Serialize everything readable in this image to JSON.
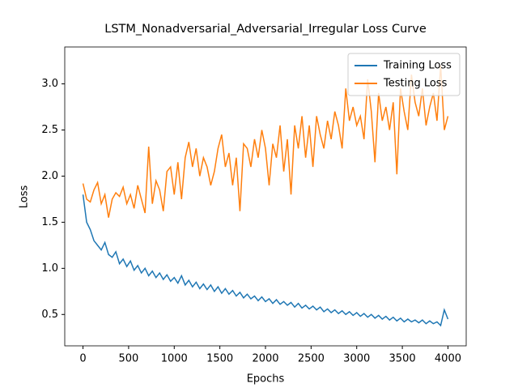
{
  "chart_data": {
    "type": "line",
    "title": "LSTM_Nonadversarial_Adversarial_Irregular Loss Curve",
    "x_label": "Epochs",
    "y_label": "Loss",
    "x": [
      0,
      40,
      80,
      120,
      160,
      200,
      240,
      280,
      320,
      360,
      400,
      440,
      480,
      520,
      560,
      600,
      640,
      680,
      720,
      760,
      800,
      840,
      880,
      920,
      960,
      1000,
      1040,
      1080,
      1120,
      1160,
      1200,
      1240,
      1280,
      1320,
      1360,
      1400,
      1440,
      1480,
      1520,
      1560,
      1600,
      1640,
      1680,
      1720,
      1760,
      1800,
      1840,
      1880,
      1920,
      1960,
      2000,
      2040,
      2080,
      2120,
      2160,
      2200,
      2240,
      2280,
      2320,
      2360,
      2400,
      2440,
      2480,
      2520,
      2560,
      2600,
      2640,
      2680,
      2720,
      2760,
      2800,
      2840,
      2880,
      2920,
      2960,
      3000,
      3040,
      3080,
      3120,
      3160,
      3200,
      3240,
      3280,
      3320,
      3360,
      3400,
      3440,
      3480,
      3520,
      3560,
      3600,
      3640,
      3680,
      3720,
      3760,
      3800,
      3840,
      3880,
      3920,
      3960,
      4000
    ],
    "series": [
      {
        "name": "Training Loss",
        "color": "#1f77b4",
        "values": [
          1.8,
          1.5,
          1.42,
          1.3,
          1.25,
          1.2,
          1.28,
          1.15,
          1.12,
          1.18,
          1.05,
          1.1,
          1.02,
          1.08,
          0.98,
          1.03,
          0.95,
          1.0,
          0.92,
          0.97,
          0.9,
          0.95,
          0.88,
          0.93,
          0.86,
          0.9,
          0.84,
          0.92,
          0.82,
          0.87,
          0.8,
          0.85,
          0.78,
          0.83,
          0.77,
          0.82,
          0.75,
          0.8,
          0.73,
          0.78,
          0.72,
          0.76,
          0.7,
          0.74,
          0.68,
          0.72,
          0.67,
          0.7,
          0.65,
          0.69,
          0.64,
          0.67,
          0.62,
          0.66,
          0.61,
          0.64,
          0.6,
          0.63,
          0.58,
          0.62,
          0.57,
          0.6,
          0.56,
          0.59,
          0.55,
          0.58,
          0.53,
          0.56,
          0.52,
          0.55,
          0.51,
          0.54,
          0.5,
          0.53,
          0.49,
          0.52,
          0.48,
          0.51,
          0.47,
          0.5,
          0.46,
          0.49,
          0.45,
          0.48,
          0.44,
          0.47,
          0.43,
          0.46,
          0.42,
          0.45,
          0.42,
          0.44,
          0.41,
          0.44,
          0.4,
          0.43,
          0.4,
          0.42,
          0.38,
          0.55,
          0.45
        ]
      },
      {
        "name": "Testing Loss",
        "color": "#ff7f0e",
        "values": [
          1.92,
          1.75,
          1.72,
          1.85,
          1.93,
          1.7,
          1.8,
          1.55,
          1.75,
          1.82,
          1.78,
          1.88,
          1.7,
          1.8,
          1.65,
          1.9,
          1.75,
          1.6,
          2.32,
          1.7,
          1.95,
          1.85,
          1.62,
          2.05,
          2.1,
          1.8,
          2.15,
          1.75,
          2.2,
          2.37,
          2.1,
          2.3,
          2.0,
          2.2,
          2.1,
          1.9,
          2.05,
          2.3,
          2.45,
          2.1,
          2.25,
          1.9,
          2.2,
          1.62,
          2.35,
          2.3,
          2.1,
          2.4,
          2.2,
          2.5,
          2.3,
          1.9,
          2.35,
          2.2,
          2.55,
          2.05,
          2.4,
          1.8,
          2.55,
          2.3,
          2.65,
          2.2,
          2.55,
          2.1,
          2.65,
          2.45,
          2.3,
          2.6,
          2.4,
          2.7,
          2.55,
          2.3,
          2.95,
          2.6,
          2.75,
          2.55,
          2.65,
          2.4,
          3.05,
          2.7,
          2.15,
          2.9,
          2.6,
          2.75,
          2.5,
          2.8,
          2.02,
          2.95,
          2.7,
          2.5,
          3.1,
          2.8,
          2.65,
          2.95,
          2.55,
          2.75,
          2.9,
          2.6,
          3.2,
          2.5,
          2.65
        ]
      }
    ],
    "xlim": [
      -200,
      4200
    ],
    "ylim": [
      0.16,
      3.4
    ],
    "xticks": [
      0,
      500,
      1000,
      1500,
      2000,
      2500,
      3000,
      3500,
      4000
    ],
    "yticks": [
      0.5,
      {
        "value": 1.0,
        "label": "1.0"
      },
      1.5,
      {
        "value": 2.0,
        "label": "2.0"
      },
      2.5,
      {
        "value": 3.0,
        "label": "3.0"
      }
    ],
    "grid": false,
    "legend": "upper right"
  }
}
